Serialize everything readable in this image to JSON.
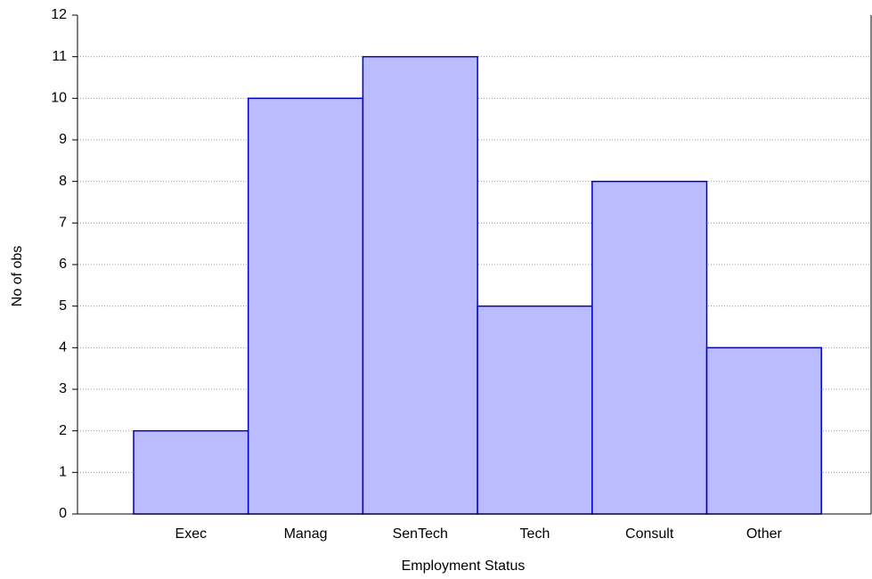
{
  "chart_data": {
    "type": "bar",
    "categories": [
      "Exec",
      "Manag",
      "SenTech",
      "Tech",
      "Consult",
      "Other"
    ],
    "values": [
      2,
      10,
      11,
      5,
      8,
      4
    ],
    "color": "#bbbbff",
    "edge_color": "#0000cc",
    "xlabel": "Employment Status",
    "ylabel": "No of obs",
    "ylim": [
      0,
      12
    ],
    "yticks": [
      0,
      1,
      2,
      3,
      4,
      5,
      6,
      7,
      8,
      9,
      10,
      11,
      12
    ],
    "grid": true
  }
}
